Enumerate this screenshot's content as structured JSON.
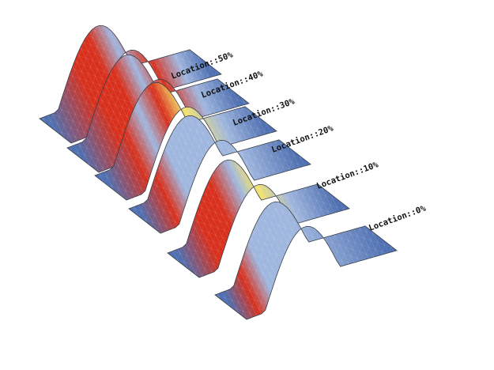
{
  "figure": {
    "labels": [
      "Location::50%",
      "Location::40%",
      "Location::30%",
      "Location::20%",
      "Location::10%",
      "Location::0%"
    ]
  },
  "colors": {
    "low": "#4e6fb1",
    "mid": "#9fb6de",
    "warm": "#f3e26c",
    "hot": "#d8301c"
  }
}
